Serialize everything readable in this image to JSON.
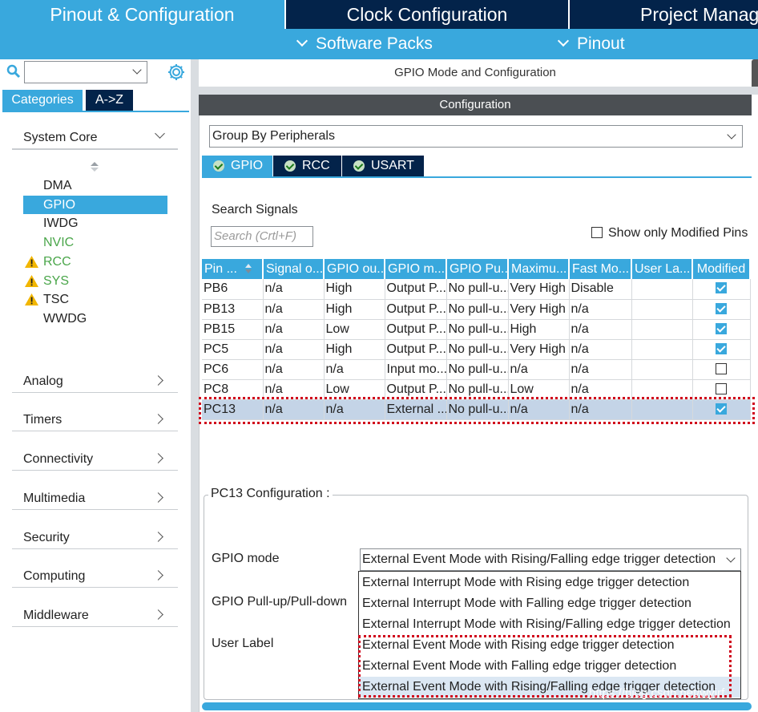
{
  "top_tabs": [
    "Pinout & Configuration",
    "Clock Configuration",
    "Project Manag"
  ],
  "sub_nav": [
    "Software Packs",
    "Pinout"
  ],
  "left": {
    "category_tabs": [
      "Categories",
      "A->Z"
    ],
    "system_core": {
      "label": "System Core",
      "items": [
        {
          "label": "DMA"
        },
        {
          "label": "GPIO"
        },
        {
          "label": "IWDG"
        },
        {
          "label": "NVIC"
        },
        {
          "label": "RCC"
        },
        {
          "label": "SYS"
        },
        {
          "label": "TSC"
        },
        {
          "label": "WWDG"
        }
      ]
    },
    "groups": [
      "Analog",
      "Timers",
      "Connectivity",
      "Multimedia",
      "Security",
      "Computing",
      "Middleware"
    ]
  },
  "right": {
    "title": "GPIO Mode and Configuration",
    "config_header": "Configuration",
    "group_by": "Group By Peripherals",
    "peripheral_tabs": [
      "GPIO",
      "RCC",
      "USART"
    ],
    "search_label": "Search Signals",
    "search_placeholder": "Search (Crtl+F)",
    "show_modified": "Show only Modified Pins",
    "table": {
      "headers": [
        "Pin ...",
        "Signal o...",
        "GPIO ou...",
        "GPIO m...",
        "GPIO Pu...",
        "Maximu...",
        "Fast Mo...",
        "User La...",
        "Modified"
      ],
      "rows": [
        {
          "cells": [
            "PB6",
            "n/a",
            "High",
            "Output P...",
            "No pull-u...",
            "Very High",
            "Disable",
            ""
          ],
          "modified": true
        },
        {
          "cells": [
            "PB13",
            "n/a",
            "High",
            "Output P...",
            "No pull-u...",
            "Very High",
            "n/a",
            ""
          ],
          "modified": true
        },
        {
          "cells": [
            "PB15",
            "n/a",
            "Low",
            "Output P...",
            "No pull-u...",
            "High",
            "n/a",
            ""
          ],
          "modified": true
        },
        {
          "cells": [
            "PC5",
            "n/a",
            "High",
            "Output P...",
            "No pull-u...",
            "Very High",
            "n/a",
            ""
          ],
          "modified": true
        },
        {
          "cells": [
            "PC6",
            "n/a",
            "n/a",
            "Input mo...",
            "No pull-u...",
            "n/a",
            "n/a",
            ""
          ],
          "modified": false
        },
        {
          "cells": [
            "PC8",
            "n/a",
            "Low",
            "Output P...",
            "No pull-u...",
            "Low",
            "n/a",
            ""
          ],
          "modified": false
        },
        {
          "cells": [
            "PC13",
            "n/a",
            "n/a",
            "External ...",
            "No pull-u...",
            "n/a",
            "n/a",
            ""
          ],
          "modified": true
        }
      ]
    },
    "pc13": {
      "legend": "PC13 Configuration :",
      "gpio_mode_label": "GPIO mode",
      "gpio_mode_value": "External Event Mode with Rising/Falling edge trigger detection",
      "pull_label": "GPIO Pull-up/Pull-down",
      "user_label": "User Label",
      "options": [
        "External Interrupt Mode with Rising edge trigger detection",
        "External Interrupt Mode with Falling edge trigger detection",
        "External Interrupt Mode with Rising/Falling edge trigger detection",
        "External Event Mode with Rising edge trigger detection",
        "External Event Mode with Falling edge trigger detection",
        "External Event Mode with Rising/Falling edge trigger detection"
      ]
    }
  },
  "watermark": "https://blog.csdn.net/wyirf",
  "colors": {
    "accent": "#39a8dd",
    "dark_tab": "#03234a",
    "selected_row": "#c4d4e7",
    "highlight": "#d0021b"
  }
}
